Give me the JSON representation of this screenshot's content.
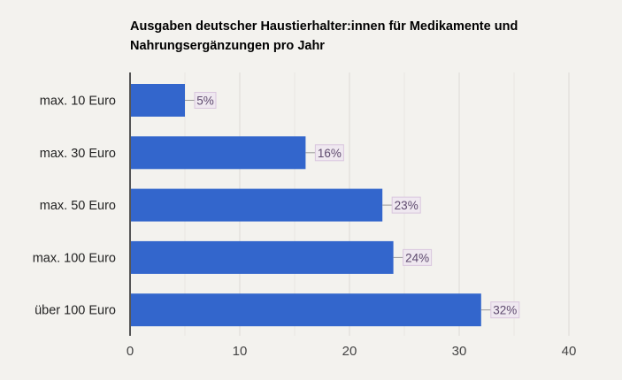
{
  "chart_data": {
    "type": "bar",
    "orientation": "horizontal",
    "title": "Ausgaben deutscher Haustierhalter:innen für Medikamente und Nahrungsergänzungen pro Jahr",
    "categories": [
      "max. 10 Euro",
      "max. 30 Euro",
      "max. 50 Euro",
      "max. 100 Euro",
      "über 100 Euro"
    ],
    "values": [
      5,
      16,
      23,
      24,
      32
    ],
    "data_labels": [
      "5%",
      "16%",
      "23%",
      "24%",
      "32%"
    ],
    "xlim": [
      0,
      40
    ],
    "xticks": [
      0,
      10,
      20,
      30,
      40
    ],
    "grid": true,
    "colors": {
      "bar": "#3366cc",
      "label_bg": "#efe8f0",
      "label_border": "#d9c6de",
      "label_text": "#5e4a6e",
      "grid": "#dcdad5",
      "background": "#f3f2ee"
    }
  }
}
